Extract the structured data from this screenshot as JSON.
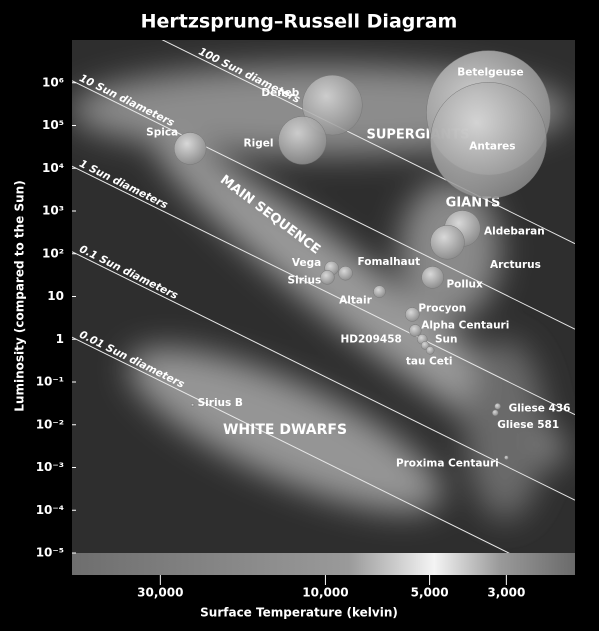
{
  "chart_data": {
    "type": "scatter",
    "title": "Hertzsprung–Russell Diagram",
    "x_label": "Surface Temperature (kelvin)",
    "y_label": "Luminosity (compared to the Sun)",
    "x_scale": "log",
    "y_scale": "log",
    "xlim": [
      54000,
      1900
    ],
    "ylim": [
      1e-05,
      10000000
    ],
    "xticks": [
      {
        "value": 30000,
        "label": "30,000"
      },
      {
        "value": 10000,
        "label": "10,000"
      },
      {
        "value": 5000,
        "label": "5,000"
      },
      {
        "value": 3000,
        "label": "3,000"
      }
    ],
    "yticks": [
      {
        "value": 1e-05,
        "label": "10⁻⁵"
      },
      {
        "value": 0.0001,
        "label": "10⁻⁴"
      },
      {
        "value": 0.001,
        "label": "10⁻³"
      },
      {
        "value": 0.01,
        "label": "10⁻²"
      },
      {
        "value": 0.1,
        "label": "10⁻¹"
      },
      1,
      10,
      {
        "value": 100,
        "label": "10²"
      },
      {
        "value": 1000,
        "label": "10³"
      },
      {
        "value": 10000,
        "label": "10⁴"
      },
      {
        "value": 100000,
        "label": "10⁵"
      },
      {
        "value": 1000000,
        "label": "10⁶"
      }
    ],
    "labels": [
      "Betelgeuse",
      "Antares",
      "Deneb",
      "Rigel",
      "Spica",
      "Aldebaran",
      "Arcturus",
      "Pollux",
      "Vega",
      "Fomalhaut",
      "Sirius",
      "Altair",
      "Procyon",
      "Alpha Centauri",
      "Sun",
      "HD209458",
      "tau Ceti",
      "Sirius B",
      "Gliese 436",
      "Gliese 581",
      "Proxima Centauri"
    ],
    "x": [
      3380,
      3380,
      9550,
      11650,
      24600,
      4020,
      4440,
      4900,
      9600,
      8750,
      9870,
      6980,
      5610,
      5500,
      5250,
      5150,
      4980,
      24200,
      3180,
      3230,
      3000
    ],
    "values": [
      200000,
      45000,
      300000,
      45000,
      29000,
      390,
      186,
      28,
      46,
      35,
      28,
      13,
      3.8,
      1.6,
      1,
      0.72,
      0.55,
      0.029,
      0.027,
      0.019,
      0.0017
    ],
    "sizes": [
      62,
      58,
      30,
      24,
      16,
      18,
      17,
      11,
      7,
      7,
      7,
      6,
      7,
      6,
      5,
      4,
      4,
      1.5,
      3,
      3,
      2
    ],
    "radius_lines": [
      {
        "value": 100,
        "label": "100 Sun diameters"
      },
      {
        "value": 10,
        "label": "10 Sun diameters"
      },
      {
        "value": 1,
        "label": "1 Sun diameters"
      },
      {
        "value": 0.1,
        "label": "0.1 Sun diameters"
      },
      {
        "value": 0.01,
        "label": "0.01 Sun diameters"
      }
    ],
    "annotations": [
      "SUPERGIANTS",
      "GIANTS",
      "MAIN SEQUENCE",
      "WHITE DWARFS"
    ]
  }
}
